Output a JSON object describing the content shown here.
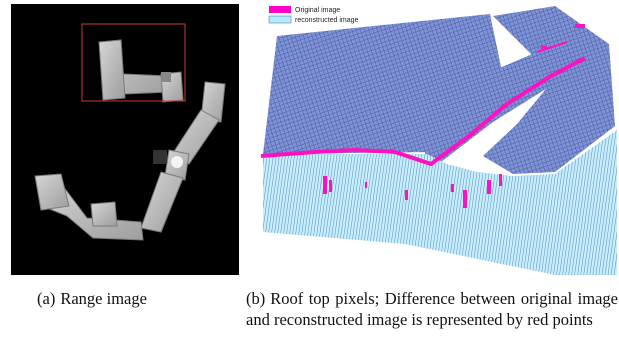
{
  "figure": {
    "panel_a": {
      "label": "(a)",
      "caption": "Range image"
    },
    "panel_b": {
      "label": "(b)",
      "caption": "Roof top pixels; Difference between original image and reconstructed image is represented by red points",
      "legend": [
        {
          "name": "Original image",
          "color": "#ff00cc"
        },
        {
          "name": "reconstructed image",
          "color": "#b3ecfb"
        }
      ]
    },
    "colors": {
      "mesh_blue": "#4a5fb0",
      "mesh_light": "#bfeefc",
      "difference_pink": "#ff10c0",
      "roi_box": "#c2402c"
    }
  }
}
